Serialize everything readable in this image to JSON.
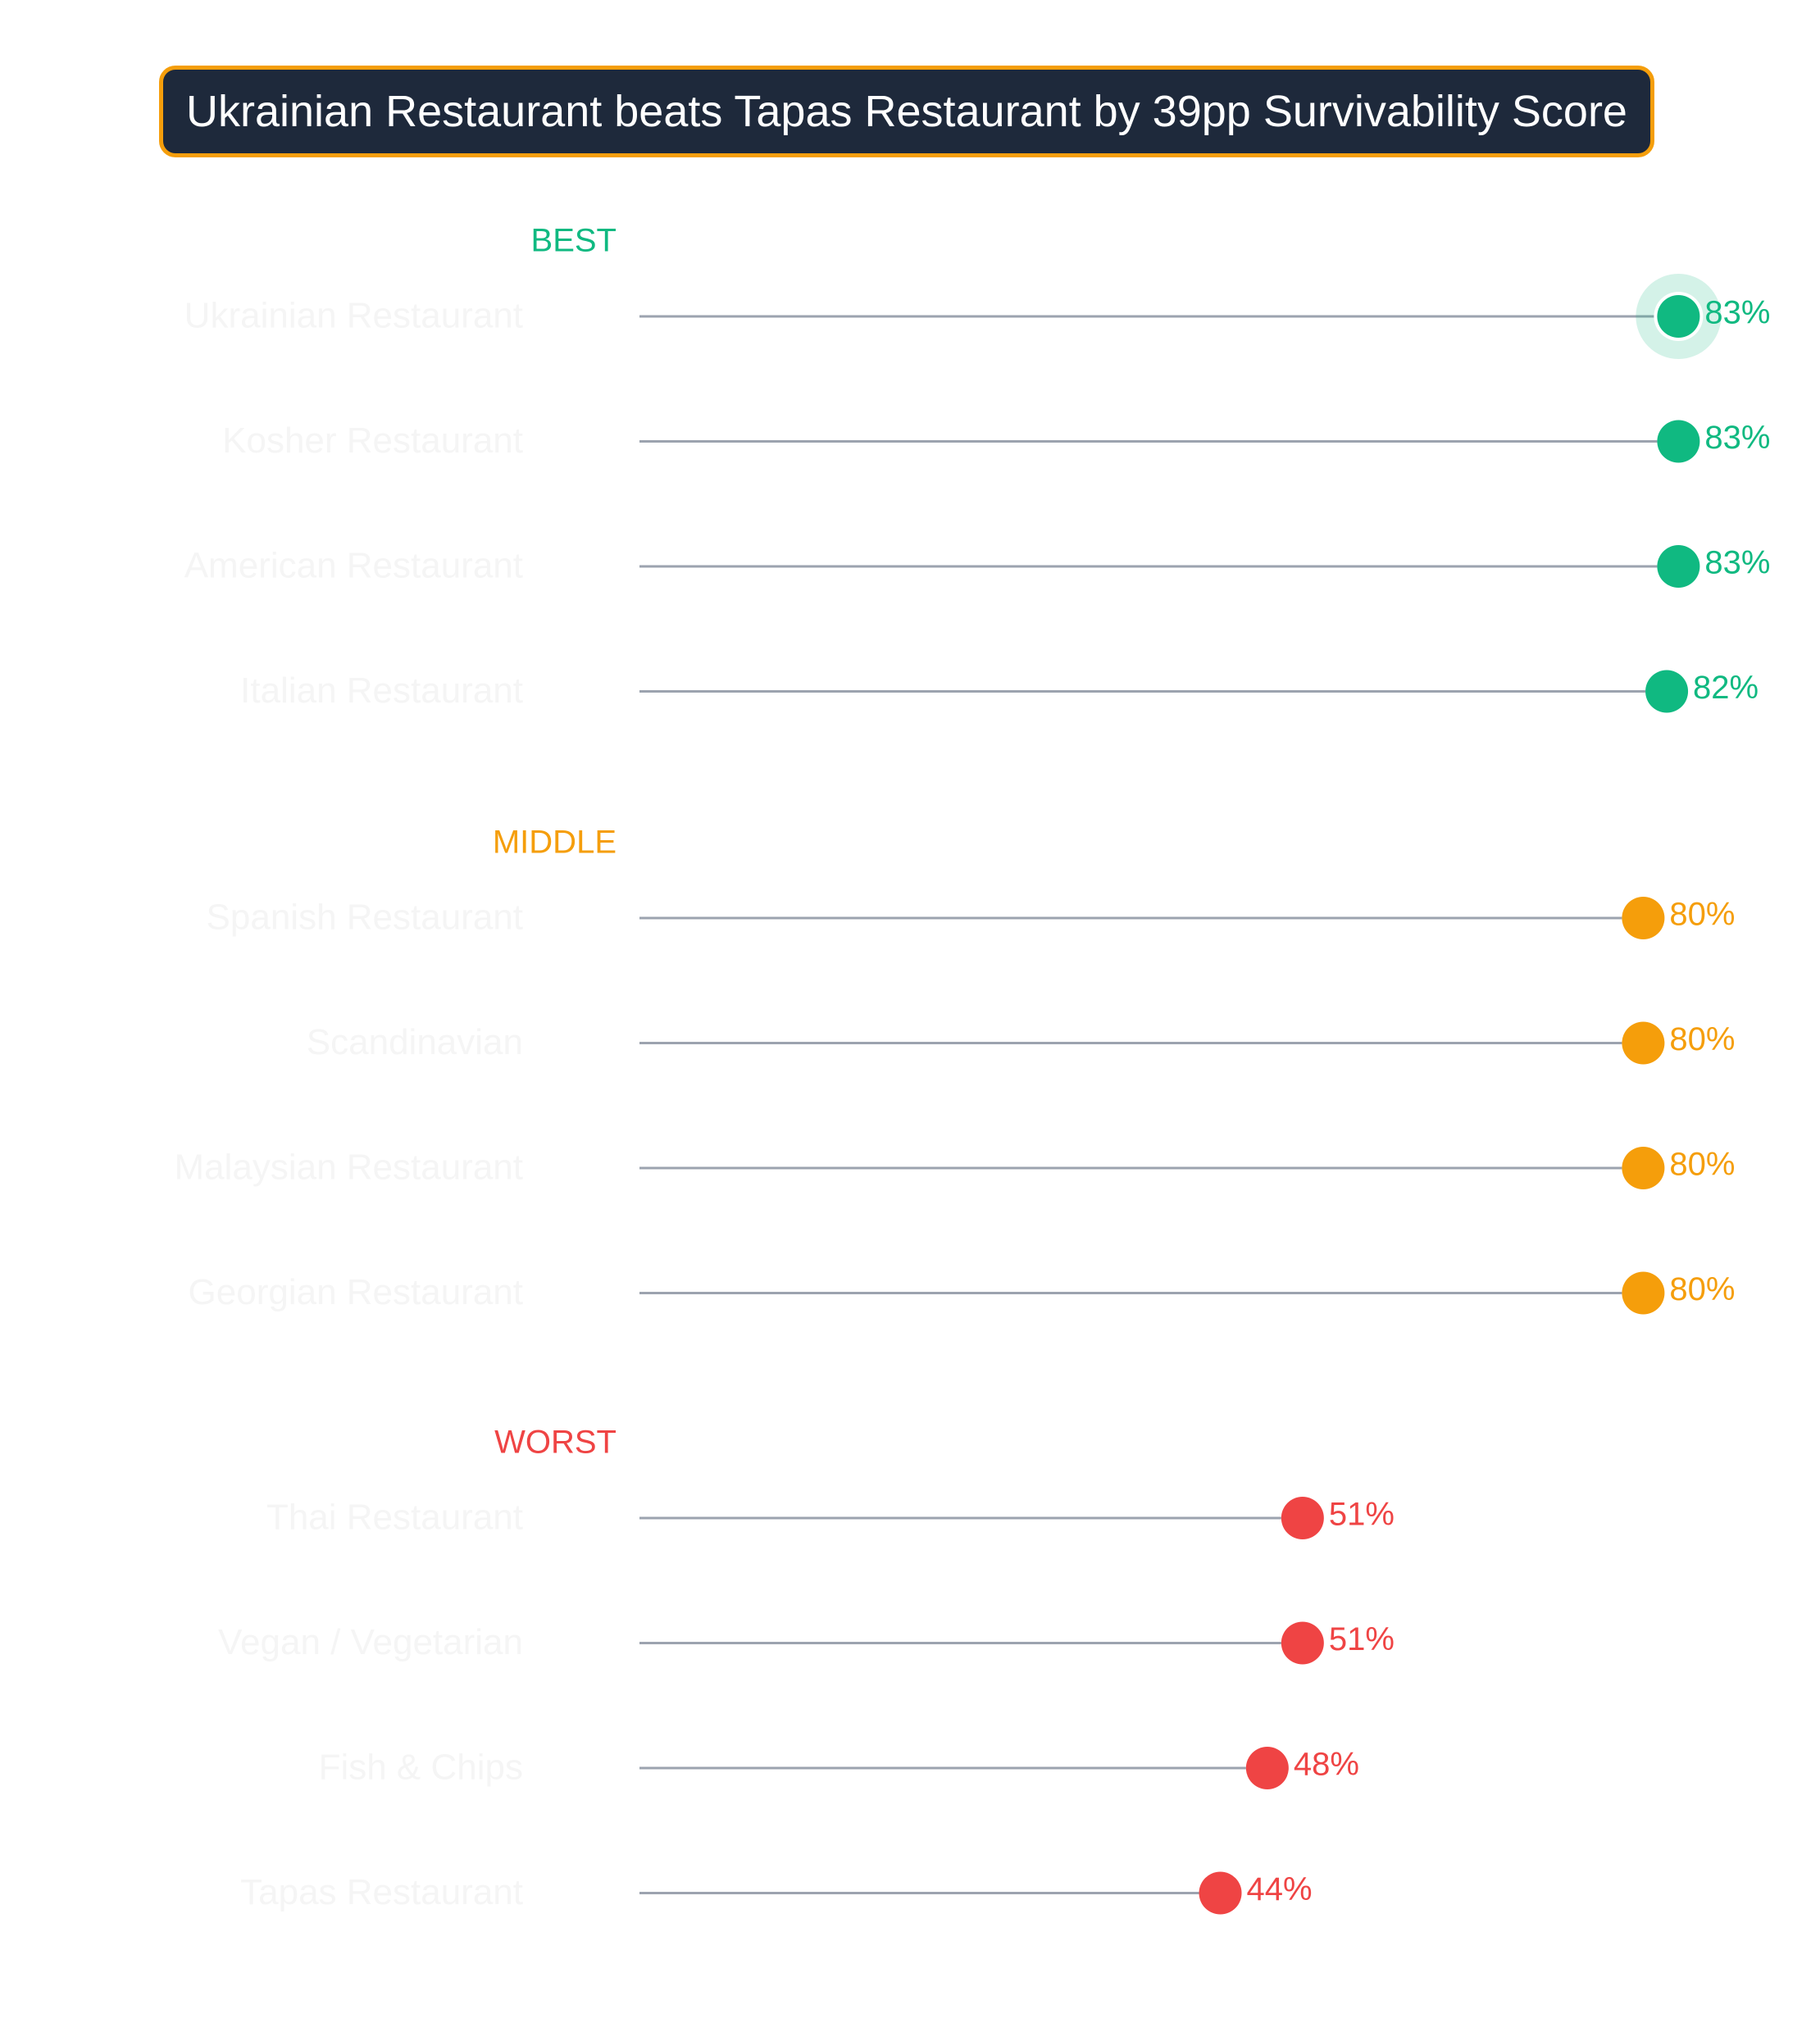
{
  "title": "Ukrainian Restaurant beats Tapas Restaurant by 39pp Survivability Score",
  "chart_data": {
    "type": "lollipop",
    "value_format": "{v}%",
    "groups": [
      {
        "label": "BEST",
        "color": "#10b981",
        "items": [
          {
            "name": "Ukrainian Restaurant",
            "value": 83,
            "label": "83%",
            "highlight": true
          },
          {
            "name": "Kosher Restaurant",
            "value": 83,
            "label": "83%"
          },
          {
            "name": "American Restaurant",
            "value": 83,
            "label": "83%"
          },
          {
            "name": "Italian Restaurant",
            "value": 82,
            "label": "82%"
          }
        ]
      },
      {
        "label": "MIDDLE",
        "color": "#f59e0b",
        "items": [
          {
            "name": "Spanish Restaurant",
            "value": 80,
            "label": "80%"
          },
          {
            "name": "Scandinavian",
            "value": 80,
            "label": "80%"
          },
          {
            "name": "Malaysian Restaurant",
            "value": 80,
            "label": "80%"
          },
          {
            "name": "Georgian Restaurant",
            "value": 80,
            "label": "80%"
          }
        ]
      },
      {
        "label": "WORST",
        "color": "#ef4444",
        "items": [
          {
            "name": "Thai Restaurant",
            "value": 51,
            "label": "51%"
          },
          {
            "name": "Vegan / Vegetarian",
            "value": 51,
            "label": "51%"
          },
          {
            "name": "Fish & Chips",
            "value": 48,
            "label": "48%"
          },
          {
            "name": "Tapas Restaurant",
            "value": 44,
            "label": "44%"
          }
        ]
      }
    ],
    "stem_color": "#9ca3af",
    "category_label_color": "#f5f5f5"
  }
}
